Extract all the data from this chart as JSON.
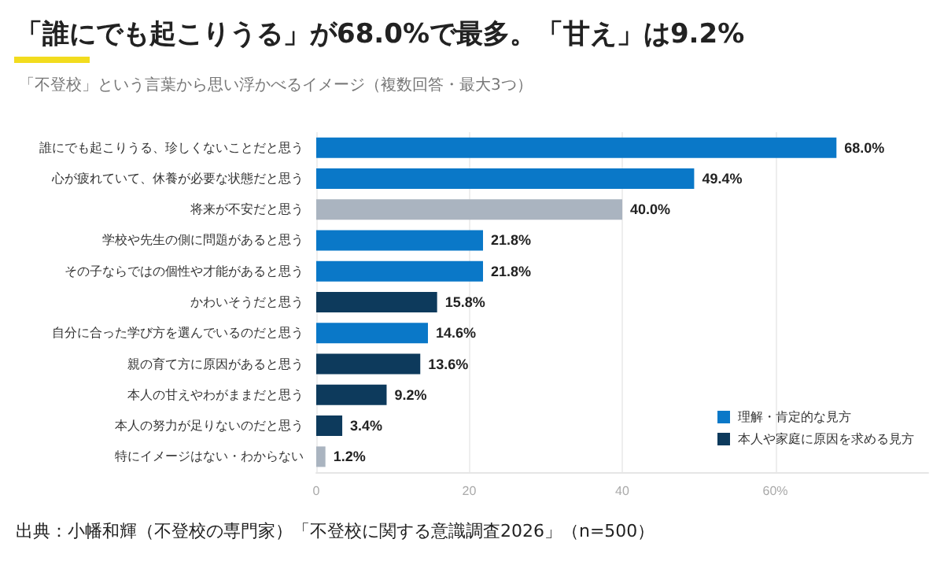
{
  "chart_data": {
    "type": "bar",
    "orientation": "horizontal",
    "title": "「誰にでも起こりうる」が68.0%で最多。「甘え」は9.2%",
    "subtitle": "「不登校」という言葉から思い浮かべるイメージ（複数回答・最大3つ）",
    "categories": [
      "誰にでも起こりうる、珍しくないことだと思う",
      "心が疲れていて、休養が必要な状態だと思う",
      "将来が不安だと思う",
      "学校や先生の側に問題があると思う",
      "その子ならではの個性や才能があると思う",
      "かわいそうだと思う",
      "自分に合った学び方を選んでいるのだと思う",
      "親の育て方に原因があると思う",
      "本人の甘えやわがままだと思う",
      "本人の努力が足りないのだと思う",
      "特にイメージはない・わからない"
    ],
    "series": [
      {
        "name": "理解・肯定的な見方",
        "color": "#0a78c8",
        "values": [
          68.0,
          49.4,
          null,
          21.8,
          21.8,
          null,
          14.6,
          null,
          null,
          null,
          null
        ],
        "value_labels": [
          "68.0%",
          "49.4%",
          null,
          "21.8%",
          "21.8%",
          null,
          "14.6%",
          null,
          null,
          null,
          null
        ]
      },
      {
        "name": "本人や家庭に原因を求める見方",
        "color": "#0d3a5c",
        "values": [
          null,
          null,
          null,
          null,
          null,
          15.8,
          null,
          13.6,
          9.2,
          3.4,
          null
        ],
        "value_labels": [
          null,
          null,
          null,
          null,
          null,
          "15.8%",
          null,
          "13.6%",
          "9.2%",
          "3.4%",
          null
        ]
      },
      {
        "color": "#aab4c0",
        "values": [
          null,
          null,
          40.0,
          null,
          null,
          null,
          null,
          null,
          null,
          null,
          1.2
        ],
        "value_labels": [
          null,
          null,
          "40.0%",
          null,
          null,
          null,
          null,
          null,
          null,
          null,
          "1.2%"
        ]
      }
    ],
    "xlim": [
      0,
      80
    ],
    "xticks": [
      0,
      20,
      40,
      {
        "value": 60,
        "label": "60%"
      }
    ],
    "grid": "x",
    "legend": "bottom right",
    "annotations": [
      "出典：小幡和輝（不登校の専門家）「不登校に関する意識調査2026」（n=500）"
    ]
  }
}
